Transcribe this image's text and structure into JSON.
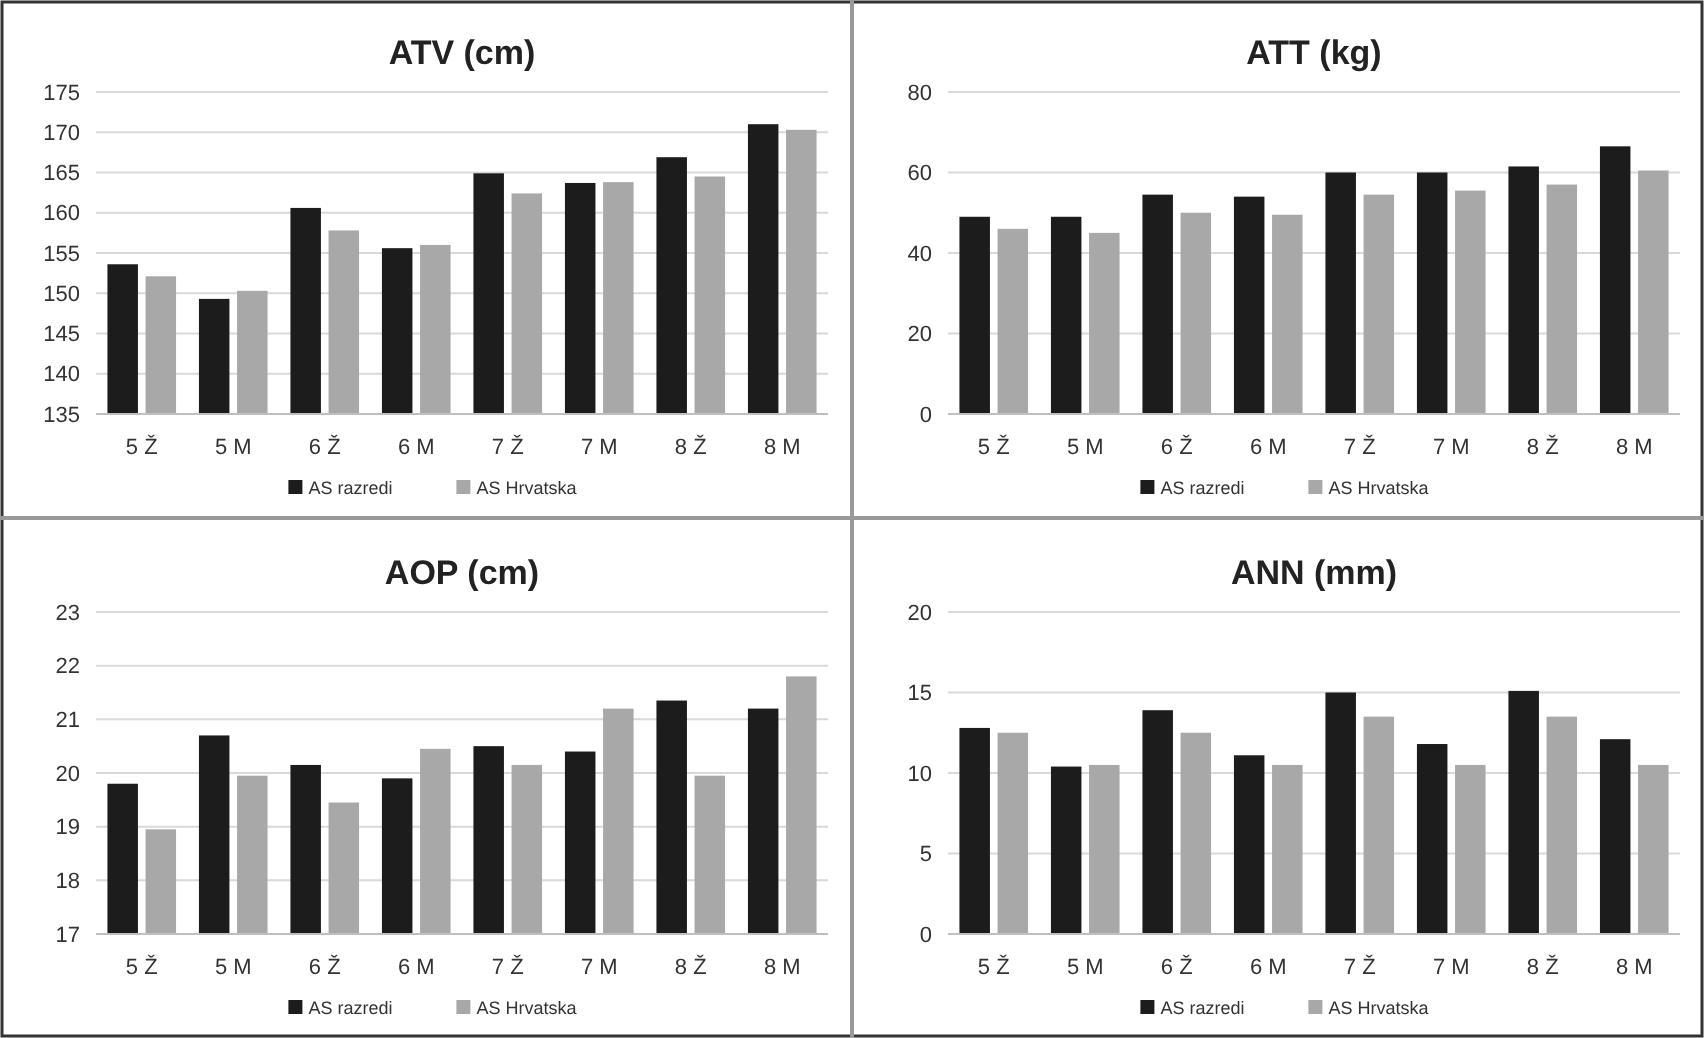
{
  "chart_data": [
    {
      "type": "bar",
      "title": "ATV (cm)",
      "categories": [
        "5 Ž",
        "5 M",
        "6 Ž",
        "6 M",
        "7 Ž",
        "7 M",
        "8 Ž",
        "8 M"
      ],
      "ylim": [
        135,
        175
      ],
      "yticks": [
        135,
        140,
        145,
        150,
        155,
        160,
        165,
        170,
        175
      ],
      "grid": "y",
      "legend": "bottom",
      "series": [
        {
          "name": "AS razredi",
          "color": "#1c1c1c",
          "values": [
            153.6,
            149.3,
            160.6,
            155.6,
            164.9,
            163.7,
            166.9,
            171
          ]
        },
        {
          "name": "AS Hrvatska",
          "color": "#a8a8a8",
          "values": [
            152.1,
            150.3,
            157.8,
            156,
            162.4,
            163.8,
            164.5,
            170.3
          ]
        }
      ]
    },
    {
      "type": "bar",
      "title": "ATT (kg)",
      "categories": [
        "5 Ž",
        "5 M",
        "6 Ž",
        "6 M",
        "7 Ž",
        "7 M",
        "8 Ž",
        "8 M"
      ],
      "ylim": [
        0,
        80
      ],
      "yticks": [
        0,
        20,
        40,
        60,
        80
      ],
      "grid": "y",
      "legend": "bottom",
      "series": [
        {
          "name": "AS razredi",
          "color": "#1c1c1c",
          "values": [
            49,
            49,
            54.5,
            54,
            60,
            60,
            61.5,
            66.5
          ]
        },
        {
          "name": "AS Hrvatska",
          "color": "#a8a8a8",
          "values": [
            46,
            45,
            50,
            49.5,
            54.5,
            55.5,
            57,
            60.5
          ]
        }
      ]
    },
    {
      "type": "bar",
      "title": "AOP (cm)",
      "categories": [
        "5 Ž",
        "5 M",
        "6 Ž",
        "6 M",
        "7 Ž",
        "7 M",
        "8 Ž",
        "8 M"
      ],
      "ylim": [
        17,
        23
      ],
      "yticks": [
        17,
        18,
        19,
        20,
        21,
        22,
        23
      ],
      "grid": "y",
      "legend": "bottom",
      "series": [
        {
          "name": "AS razredi",
          "color": "#1c1c1c",
          "values": [
            19.8,
            20.7,
            20.15,
            19.9,
            20.5,
            20.4,
            21.35,
            21.2
          ]
        },
        {
          "name": "AS Hrvatska",
          "color": "#a8a8a8",
          "values": [
            18.95,
            19.95,
            19.45,
            20.45,
            20.15,
            21.2,
            19.95,
            21.8
          ]
        }
      ]
    },
    {
      "type": "bar",
      "title": "ANN (mm)",
      "categories": [
        "5 Ž",
        "5 M",
        "6 Ž",
        "6 M",
        "7 Ž",
        "7 M",
        "8 Ž",
        "8 M"
      ],
      "ylim": [
        0,
        20
      ],
      "yticks": [
        0,
        5,
        10,
        15,
        20
      ],
      "grid": "y",
      "legend": "bottom",
      "series": [
        {
          "name": "AS razredi",
          "color": "#1c1c1c",
          "values": [
            12.8,
            10.4,
            13.9,
            11.1,
            15,
            11.8,
            15.1,
            12.1
          ]
        },
        {
          "name": "AS Hrvatska",
          "color": "#a8a8a8",
          "values": [
            12.5,
            10.5,
            12.5,
            10.5,
            13.5,
            10.5,
            13.5,
            10.5
          ]
        }
      ]
    }
  ]
}
